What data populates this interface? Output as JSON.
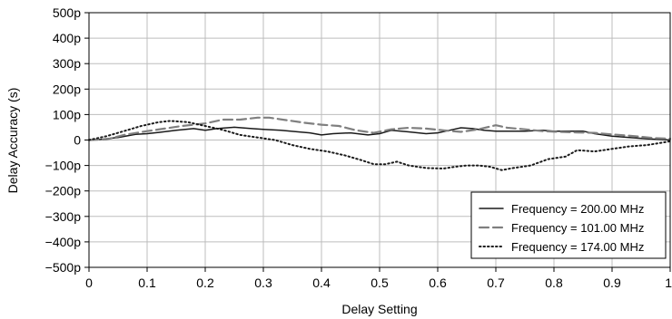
{
  "chart_data": {
    "type": "line",
    "title": "",
    "xlabel": "Delay Setting",
    "ylabel": "Delay Accuracy (s)",
    "xlim": [
      0,
      1
    ],
    "ylim": [
      -500,
      500
    ],
    "y_unit": "ps",
    "grid": true,
    "legend_position": "bottom-right",
    "x_ticks": [
      0,
      0.1,
      0.2,
      0.3,
      0.4,
      0.5,
      0.6,
      0.7,
      0.8,
      0.9,
      1
    ],
    "x_tick_labels": [
      "0",
      "0.1",
      "0.2",
      "0.3",
      "0.4",
      "0.5",
      "0.6",
      "0.7",
      "0.8",
      "0.9",
      "1"
    ],
    "y_ticks": [
      500,
      400,
      300,
      200,
      100,
      0,
      -100,
      -200,
      -300,
      -400,
      -500
    ],
    "y_tick_labels": [
      "500p",
      "400p",
      "300p",
      "200p",
      "100p",
      "0",
      "−100p",
      "−200p",
      "−300p",
      "−400p",
      "−500p"
    ],
    "series": [
      {
        "name": "Frequency = 200.00 MHz",
        "style": "solid",
        "color": "#1a1a1a",
        "x": [
          0,
          0.02,
          0.05,
          0.08,
          0.1,
          0.12,
          0.15,
          0.18,
          0.2,
          0.22,
          0.25,
          0.28,
          0.3,
          0.33,
          0.36,
          0.38,
          0.4,
          0.42,
          0.45,
          0.48,
          0.5,
          0.52,
          0.55,
          0.58,
          0.6,
          0.62,
          0.64,
          0.66,
          0.68,
          0.7,
          0.72,
          0.75,
          0.78,
          0.8,
          0.83,
          0.85,
          0.87,
          0.9,
          0.93,
          0.96,
          1.0
        ],
        "values": [
          0,
          2,
          10,
          22,
          25,
          30,
          38,
          45,
          38,
          45,
          50,
          45,
          42,
          38,
          32,
          28,
          20,
          25,
          28,
          20,
          25,
          38,
          32,
          25,
          28,
          38,
          48,
          45,
          38,
          35,
          35,
          35,
          38,
          35,
          35,
          35,
          25,
          15,
          10,
          5,
          0
        ]
      },
      {
        "name": "Frequency = 101.00 MHz",
        "style": "dashed",
        "color": "#7f7f7f",
        "x": [
          0,
          0.03,
          0.06,
          0.1,
          0.13,
          0.16,
          0.2,
          0.23,
          0.26,
          0.29,
          0.31,
          0.34,
          0.37,
          0.4,
          0.43,
          0.46,
          0.49,
          0.52,
          0.55,
          0.58,
          0.61,
          0.64,
          0.67,
          0.7,
          0.72,
          0.75,
          0.78,
          0.81,
          0.84,
          0.87,
          0.9,
          0.94,
          0.97,
          1.0
        ],
        "values": [
          0,
          2,
          20,
          35,
          45,
          55,
          65,
          80,
          80,
          88,
          88,
          78,
          68,
          60,
          55,
          38,
          28,
          42,
          48,
          45,
          38,
          32,
          42,
          58,
          48,
          42,
          35,
          32,
          30,
          28,
          22,
          15,
          8,
          5
        ]
      },
      {
        "name": "Frequency = 174.00 MHz",
        "style": "dotted",
        "color": "#1a1a1a",
        "x": [
          0,
          0.03,
          0.06,
          0.09,
          0.12,
          0.14,
          0.17,
          0.2,
          0.23,
          0.26,
          0.29,
          0.32,
          0.35,
          0.38,
          0.41,
          0.44,
          0.47,
          0.49,
          0.51,
          0.53,
          0.55,
          0.58,
          0.61,
          0.63,
          0.65,
          0.67,
          0.69,
          0.71,
          0.73,
          0.76,
          0.79,
          0.82,
          0.84,
          0.87,
          0.9,
          0.93,
          0.96,
          1.0
        ],
        "values": [
          0,
          15,
          35,
          55,
          70,
          75,
          70,
          55,
          40,
          20,
          10,
          0,
          -20,
          -35,
          -45,
          -60,
          -80,
          -95,
          -95,
          -85,
          -100,
          -110,
          -112,
          -105,
          -100,
          -100,
          -105,
          -118,
          -110,
          -100,
          -75,
          -65,
          -40,
          -45,
          -35,
          -25,
          -20,
          -5
        ]
      }
    ]
  }
}
